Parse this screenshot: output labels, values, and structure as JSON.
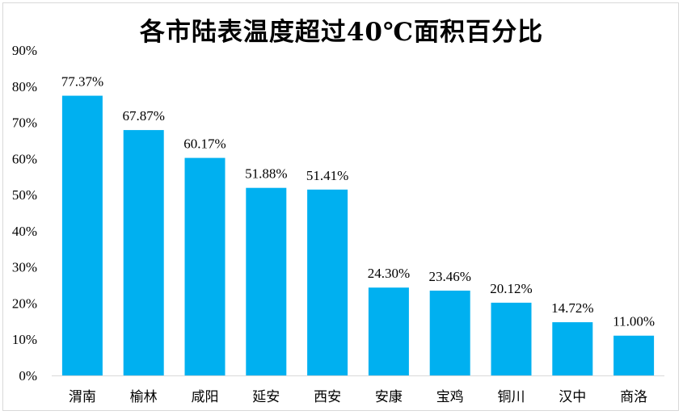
{
  "chart_data": {
    "type": "bar",
    "title": "各市陆表温度超过40℃面积百分比",
    "categories": [
      "渭南",
      "榆林",
      "咸阳",
      "延安",
      "西安",
      "安康",
      "宝鸡",
      "铜川",
      "汉中",
      "商洛"
    ],
    "values": [
      77.37,
      67.87,
      60.17,
      51.88,
      51.41,
      24.3,
      23.46,
      20.12,
      14.72,
      11.0
    ],
    "data_labels": [
      "77.37%",
      "67.87%",
      "60.17%",
      "51.88%",
      "51.41%",
      "24.30%",
      "23.46%",
      "20.12%",
      "14.72%",
      "11.00%"
    ],
    "yticks": [
      "0%",
      "10%",
      "20%",
      "30%",
      "40%",
      "50%",
      "60%",
      "70%",
      "80%",
      "90%"
    ],
    "ylim": [
      0,
      90
    ],
    "xlabel": "",
    "ylabel": "",
    "grid": false,
    "legend": "none",
    "bar_color": "#00b0f0",
    "axis_color": "#d9d9d9"
  }
}
